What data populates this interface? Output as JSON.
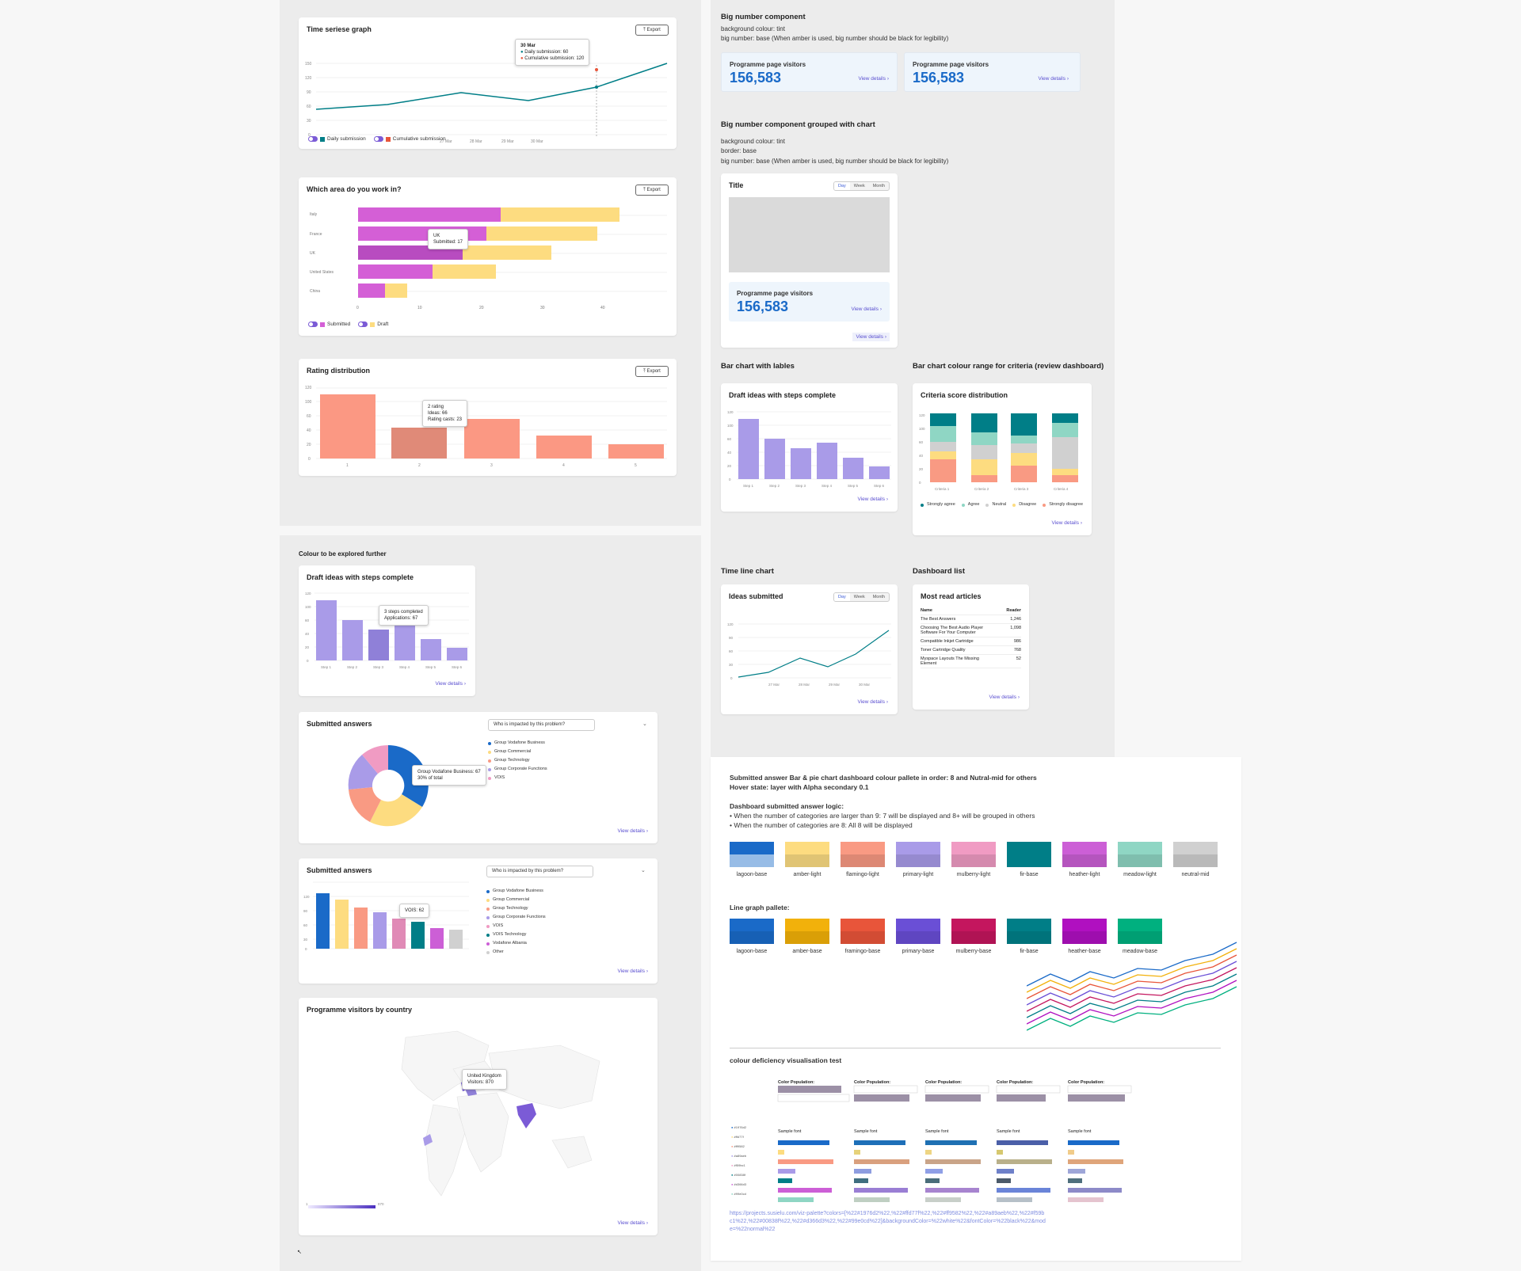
{
  "time_series": {
    "title": "Time seriese graph",
    "export": "Export",
    "tooltip_date": "30 Mar",
    "tooltip_l1": "Daily submission: 60",
    "tooltip_l2": "Cumulative submission: 120",
    "legend1": "Daily submission",
    "legend2": "Cumulative submission"
  },
  "area_card": {
    "title": "Which area do you work in?",
    "export": "Export",
    "tooltip_l1": "UK",
    "tooltip_l2": "Submitted: 17",
    "legend1": "Submitted",
    "legend2": "Draft"
  },
  "rating": {
    "title": "Rating distribution",
    "export": "Export",
    "tooltip_l1": "2 rating",
    "tooltip_l2": "Ideas: 66",
    "tooltip_l3": "Rating casts: 23"
  },
  "explore": {
    "section": "Colour to be explored further",
    "title": "Draft ideas with steps complete",
    "tooltip_l1": "3 steps completed",
    "tooltip_l2": "Applications: 67",
    "view": "View details"
  },
  "donut": {
    "title": "Submitted answers",
    "dropdown": "Who is impacted by this problem?",
    "tooltip_l1": "Group Vodafone Business: 67",
    "tooltip_l2": "30% of total",
    "legend": [
      "Group Vodafone Business",
      "Group Commercial",
      "Group Technology",
      "Group Corporate Functions",
      "VOIS"
    ],
    "view": "View details"
  },
  "bars2": {
    "title": "Submitted answers",
    "dropdown": "Who is impacted by this problem?",
    "tooltip": "VOIS: 62",
    "legend": [
      "Group Vodafone Business",
      "Group Commercial",
      "Group Technology",
      "Group Corporate Functions",
      "VOIS",
      "VOIS Technology",
      "Vodafone Albania",
      "Other"
    ],
    "view": "View details"
  },
  "map": {
    "title": "Programme visitors by country",
    "tooltip_l1": "United Kingdom",
    "tooltip_l2": "Visitors: 870",
    "scale_min": "1",
    "scale_max": "870",
    "view": "View details"
  },
  "bignum": {
    "title": "Big number component",
    "d1": "background colour: tint",
    "d2": "big number: base (When amber is used, big number should be black for legibility)",
    "label": "Programme page visitors",
    "value": "156,583",
    "view": "View details"
  },
  "grouped": {
    "title": "Big number component grouped with chart",
    "d1": "background colour: tint",
    "d2": "border: base",
    "d3": "big number: base (When amber is used, big number should be black for legibility)",
    "card_title": "Title",
    "seg": [
      "Day",
      "Week",
      "Month"
    ],
    "label": "Programme page visitors",
    "value": "156,583",
    "view": "View details"
  },
  "barlabels": {
    "section": "Bar chart with lables",
    "title": "Draft ideas with steps complete",
    "view": "View details"
  },
  "criteria": {
    "section": "Bar chart colour range for criteria (review dashboard)",
    "title": "Criteria score distribution",
    "legend": [
      "Strongly agree",
      "Agree",
      "Neutral",
      "Disagree",
      "Strongly disagree"
    ],
    "view": "View details"
  },
  "timeline": {
    "section": "Time line chart",
    "title": "Ideas submitted",
    "seg": [
      "Day",
      "Week",
      "Month"
    ],
    "view": "View details"
  },
  "dashlist": {
    "section": "Dashboard list",
    "title": "Most read articles",
    "col1": "Name",
    "col2": "Reader",
    "rows": [
      [
        "The Best Answers",
        "1,246"
      ],
      [
        "Choosing The Best Audio Player Software For Your Computer",
        "1,098"
      ],
      [
        "Compatible Inkjet Cartridge",
        "986"
      ],
      [
        "Toner Cartridge Quality",
        "768"
      ],
      [
        "Myspace Layouts The Missing Element",
        "52"
      ]
    ],
    "view": "View details"
  },
  "palette": {
    "h1": "Submitted answer Bar & pie chart dashboard colour pallete in order: 8 and Nutral-mid for others",
    "h2": "Hover state: layer with Alpha secondary 0.1",
    "logic_t": "Dashboard submitted answer logic:",
    "logic1": "• When the number of categories are larger than 9: 7 will be displayed and 8+ will be grouped in others",
    "logic2": "• When the number of categories are 8: All 8 will be displayed",
    "swatches": [
      {
        "n": "lagoon-base",
        "c": "#1a6ac8"
      },
      {
        "n": "amber-light",
        "c": "#fddc80"
      },
      {
        "n": "flamingo-light",
        "c": "#f99a83"
      },
      {
        "n": "primary-light",
        "c": "#a99be8"
      },
      {
        "n": "mulberry-light",
        "c": "#f09bc3"
      },
      {
        "n": "fir-base",
        "c": "#007e87"
      },
      {
        "n": "heather-light",
        "c": "#cc5fd6"
      },
      {
        "n": "meadow-light",
        "c": "#8fd6c4"
      },
      {
        "n": "neutral-mid",
        "c": "#d0d0d0"
      }
    ],
    "line_t": "Line graph pallete:",
    "lines": [
      {
        "n": "lagoon-base",
        "c": "#1a6ac8"
      },
      {
        "n": "amber-base",
        "c": "#f2b10b"
      },
      {
        "n": "framingo-base",
        "c": "#e8553a"
      },
      {
        "n": "primary-base",
        "c": "#6a4fd6"
      },
      {
        "n": "mulberry-base",
        "c": "#c4165e"
      },
      {
        "n": "fir-base",
        "c": "#007e87"
      },
      {
        "n": "heather-base",
        "c": "#b010c0"
      },
      {
        "n": "meadow-base",
        "c": "#00b07f"
      }
    ],
    "cdt": "colour deficiency visualisation test",
    "cp": "Color Population:",
    "sample": "Sample font",
    "link": "https://projects.susielu.com/viz-palette?colors=[%22#1976d2%22,%22#ffd77f%22,%22#ff9582%22,%22#a89aeb%22,%22#f59bc1%22,%22#00838f%22,%22#d366d3%22,%22#99e0cd%22]&backgroundColor=%22white%22&fontColor=%22black%22&mode=%22normal%22"
  }
}
